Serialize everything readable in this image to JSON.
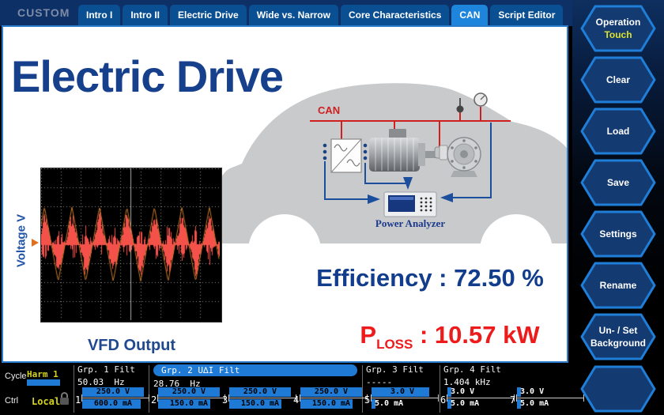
{
  "header": {
    "custom_label": "CUSTOM",
    "tabs": [
      {
        "label": "Intro I",
        "active": false
      },
      {
        "label": "Intro II",
        "active": false
      },
      {
        "label": "Electric Drive",
        "active": false
      },
      {
        "label": "Wide vs. Narrow",
        "active": false
      },
      {
        "label": "Core Characteristics",
        "active": false
      },
      {
        "label": "CAN",
        "active": true
      },
      {
        "label": "Script Editor",
        "active": false
      }
    ]
  },
  "sidebar": {
    "buttons": [
      {
        "line1": "Operation",
        "line2": "Touch",
        "accent": true
      },
      {
        "line1": "Clear",
        "line2": ""
      },
      {
        "line1": "Load",
        "line2": ""
      },
      {
        "line1": "Save",
        "line2": ""
      },
      {
        "line1": "Settings",
        "line2": ""
      },
      {
        "line1": "Rename",
        "line2": ""
      },
      {
        "line1": "Un- / Set",
        "line2": "Background"
      },
      {
        "line1": "",
        "line2": ""
      }
    ]
  },
  "main": {
    "title": "Electric Drive",
    "waveform_ylabel": "Voltage V",
    "waveform_caption": "VFD Output",
    "can_label": "CAN",
    "analyzer_label": "Power Analyzer",
    "efficiency_text": "Efficiency : 72.50 %",
    "ploss_symbol": "P",
    "ploss_sub": "LOSS",
    "ploss_value": " : 10.57 kW"
  },
  "waveform": {
    "cycles": 6.5,
    "color": "#f4514b",
    "envelope_color": "#c87a28"
  },
  "statusbar": {
    "cycle_label": "Cycle",
    "cycle_value": "Harm 1",
    "ctrl_label": "Ctrl",
    "ctrl_value": "Local",
    "groups": [
      {
        "name": "Grp. 1 Filt",
        "freq": "50.03  Hz",
        "highlight": false
      },
      {
        "name": "Grp. 2 U∆I Filt",
        "freq": "28.76  Hz",
        "highlight": true
      },
      {
        "name": "Grp. 3 Filt",
        "freq": "-----",
        "highlight": false
      },
      {
        "name": "Grp. 4 Filt",
        "freq": "1.404 kHz",
        "highlight": false
      }
    ],
    "channels": [
      {
        "num": "1",
        "v": "250.0 V",
        "a": "600.0 mA",
        "v_fill": 100,
        "a_fill": 95
      },
      {
        "num": "2",
        "v": "250.0 V",
        "a": "150.0 mA",
        "v_fill": 100,
        "a_fill": 85
      },
      {
        "num": "3",
        "v": "250.0 V",
        "a": "150.0 mA",
        "v_fill": 100,
        "a_fill": 85
      },
      {
        "num": "4",
        "v": "250.0 V",
        "a": "150.0 mA",
        "v_fill": 100,
        "a_fill": 85
      },
      {
        "num": "5",
        "v": "3.0 V",
        "a": "5.0 mA",
        "v_fill": 93,
        "a_fill": 7
      },
      {
        "num": "6",
        "v": "3.0 V",
        "a": "5.0 mA",
        "v_fill": 7,
        "a_fill": 7
      },
      {
        "num": "7",
        "v": "3.0 V",
        "a": "5.0 mA",
        "v_fill": 7,
        "a_fill": 7
      }
    ]
  },
  "colors": {
    "accent_blue": "#1e7ad4",
    "tab_active": "#1e85dc",
    "status_yellow": "#d6d41f",
    "title_blue": "#17408c",
    "alert_red": "#ed1b1b",
    "can_red": "#cf1f1f"
  }
}
